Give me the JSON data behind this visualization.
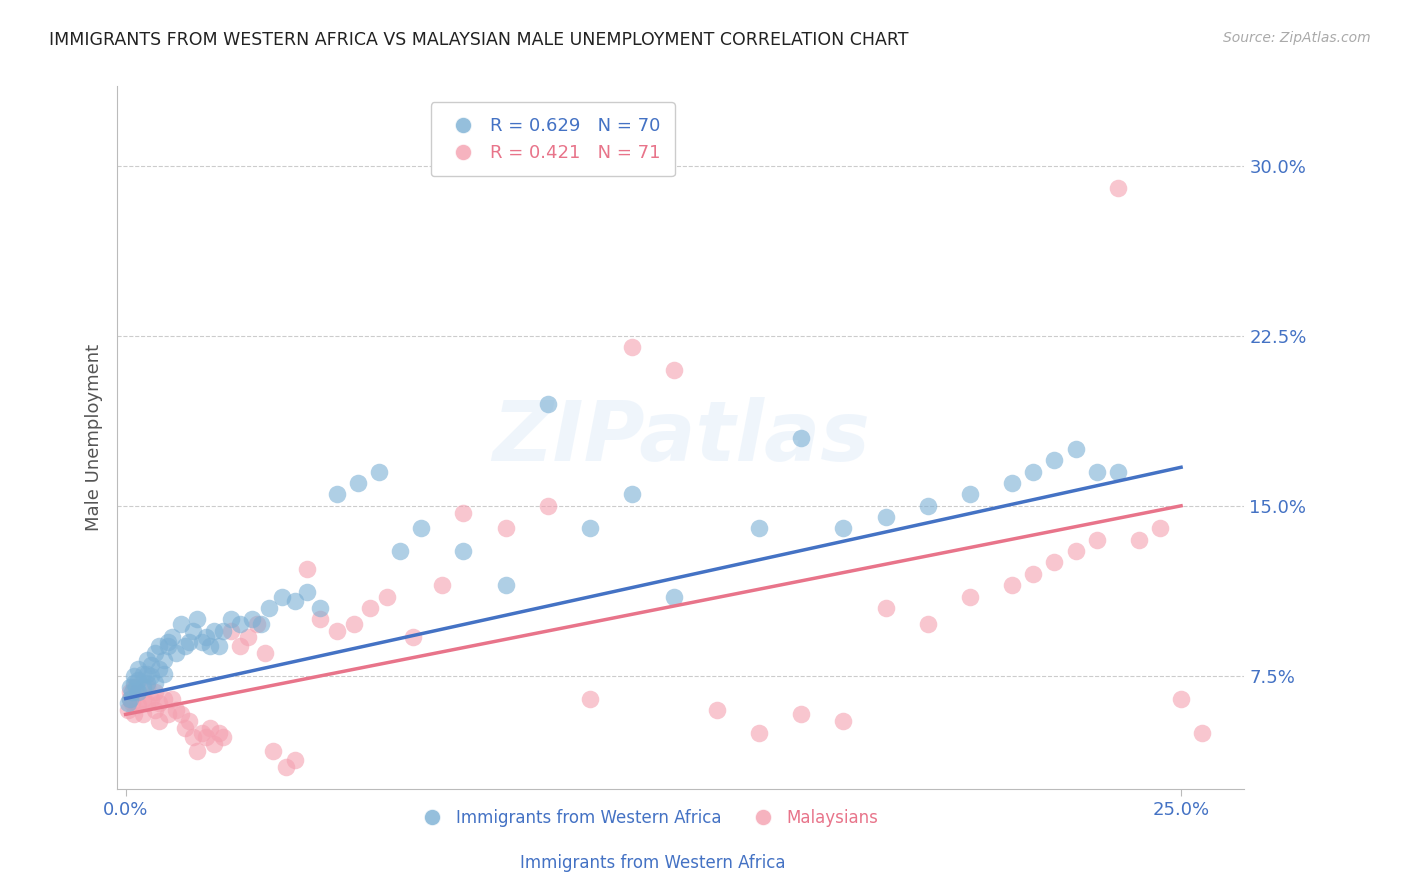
{
  "title": "IMMIGRANTS FROM WESTERN AFRICA VS MALAYSIAN MALE UNEMPLOYMENT CORRELATION CHART",
  "source": "Source: ZipAtlas.com",
  "ylabel": "Male Unemployment",
  "ytick_labels": [
    "7.5%",
    "15.0%",
    "22.5%",
    "30.0%"
  ],
  "ytick_values": [
    0.075,
    0.15,
    0.225,
    0.3
  ],
  "xtick_labels": [
    "0.0%",
    "25.0%"
  ],
  "xtick_positions": [
    0.0,
    0.25
  ],
  "xlim": [
    -0.002,
    0.265
  ],
  "ylim": [
    0.025,
    0.335
  ],
  "watermark": "ZIPatlas",
  "legend_blue_r": "R = 0.629",
  "legend_blue_n": "N = 70",
  "legend_pink_r": "R = 0.421",
  "legend_pink_n": "N = 71",
  "blue_color": "#7BAFD4",
  "pink_color": "#F4A0B0",
  "blue_line_color": "#4472C4",
  "pink_line_color": "#E8748A",
  "title_color": "#222222",
  "axis_label_color": "#4472C4",
  "pink_label_color": "#E8748A",
  "blue_scatter_x": [
    0.0005,
    0.001,
    0.001,
    0.0015,
    0.002,
    0.002,
    0.0025,
    0.003,
    0.003,
    0.003,
    0.004,
    0.004,
    0.005,
    0.005,
    0.005,
    0.006,
    0.006,
    0.007,
    0.007,
    0.008,
    0.008,
    0.009,
    0.009,
    0.01,
    0.01,
    0.011,
    0.012,
    0.013,
    0.014,
    0.015,
    0.016,
    0.017,
    0.018,
    0.019,
    0.02,
    0.021,
    0.022,
    0.023,
    0.025,
    0.027,
    0.03,
    0.032,
    0.034,
    0.037,
    0.04,
    0.043,
    0.046,
    0.05,
    0.055,
    0.06,
    0.065,
    0.07,
    0.08,
    0.09,
    0.1,
    0.11,
    0.12,
    0.13,
    0.15,
    0.16,
    0.17,
    0.18,
    0.19,
    0.2,
    0.21,
    0.215,
    0.22,
    0.225,
    0.23,
    0.235
  ],
  "blue_scatter_y": [
    0.063,
    0.065,
    0.07,
    0.068,
    0.072,
    0.075,
    0.07,
    0.068,
    0.073,
    0.078,
    0.07,
    0.076,
    0.072,
    0.076,
    0.082,
    0.075,
    0.08,
    0.072,
    0.085,
    0.078,
    0.088,
    0.082,
    0.076,
    0.09,
    0.088,
    0.092,
    0.085,
    0.098,
    0.088,
    0.09,
    0.095,
    0.1,
    0.09,
    0.092,
    0.088,
    0.095,
    0.088,
    0.095,
    0.1,
    0.098,
    0.1,
    0.098,
    0.105,
    0.11,
    0.108,
    0.112,
    0.105,
    0.155,
    0.16,
    0.165,
    0.13,
    0.14,
    0.13,
    0.115,
    0.195,
    0.14,
    0.155,
    0.11,
    0.14,
    0.18,
    0.14,
    0.145,
    0.15,
    0.155,
    0.16,
    0.165,
    0.17,
    0.175,
    0.165,
    0.165
  ],
  "pink_scatter_x": [
    0.0005,
    0.001,
    0.001,
    0.0015,
    0.002,
    0.002,
    0.003,
    0.003,
    0.004,
    0.004,
    0.005,
    0.005,
    0.006,
    0.007,
    0.007,
    0.008,
    0.008,
    0.009,
    0.01,
    0.011,
    0.012,
    0.013,
    0.014,
    0.015,
    0.016,
    0.017,
    0.018,
    0.019,
    0.02,
    0.021,
    0.022,
    0.023,
    0.025,
    0.027,
    0.029,
    0.031,
    0.033,
    0.035,
    0.038,
    0.04,
    0.043,
    0.046,
    0.05,
    0.054,
    0.058,
    0.062,
    0.068,
    0.075,
    0.08,
    0.09,
    0.1,
    0.11,
    0.12,
    0.13,
    0.14,
    0.15,
    0.16,
    0.17,
    0.18,
    0.19,
    0.2,
    0.21,
    0.215,
    0.22,
    0.225,
    0.23,
    0.235,
    0.24,
    0.245,
    0.25,
    0.255
  ],
  "pink_scatter_y": [
    0.06,
    0.065,
    0.068,
    0.063,
    0.058,
    0.07,
    0.062,
    0.068,
    0.058,
    0.065,
    0.063,
    0.07,
    0.065,
    0.06,
    0.068,
    0.055,
    0.063,
    0.065,
    0.058,
    0.065,
    0.06,
    0.058,
    0.052,
    0.055,
    0.048,
    0.042,
    0.05,
    0.048,
    0.052,
    0.045,
    0.05,
    0.048,
    0.095,
    0.088,
    0.092,
    0.098,
    0.085,
    0.042,
    0.035,
    0.038,
    0.122,
    0.1,
    0.095,
    0.098,
    0.105,
    0.11,
    0.092,
    0.115,
    0.147,
    0.14,
    0.15,
    0.065,
    0.22,
    0.21,
    0.06,
    0.05,
    0.058,
    0.055,
    0.105,
    0.098,
    0.11,
    0.115,
    0.12,
    0.125,
    0.13,
    0.135,
    0.29,
    0.135,
    0.14,
    0.065,
    0.05
  ],
  "blue_line_x": [
    0.0,
    0.25
  ],
  "blue_line_y": [
    0.065,
    0.167
  ],
  "pink_line_x": [
    0.0,
    0.25
  ],
  "pink_line_y": [
    0.058,
    0.15
  ],
  "background_color": "#FFFFFF",
  "grid_color": "#CCCCCC"
}
